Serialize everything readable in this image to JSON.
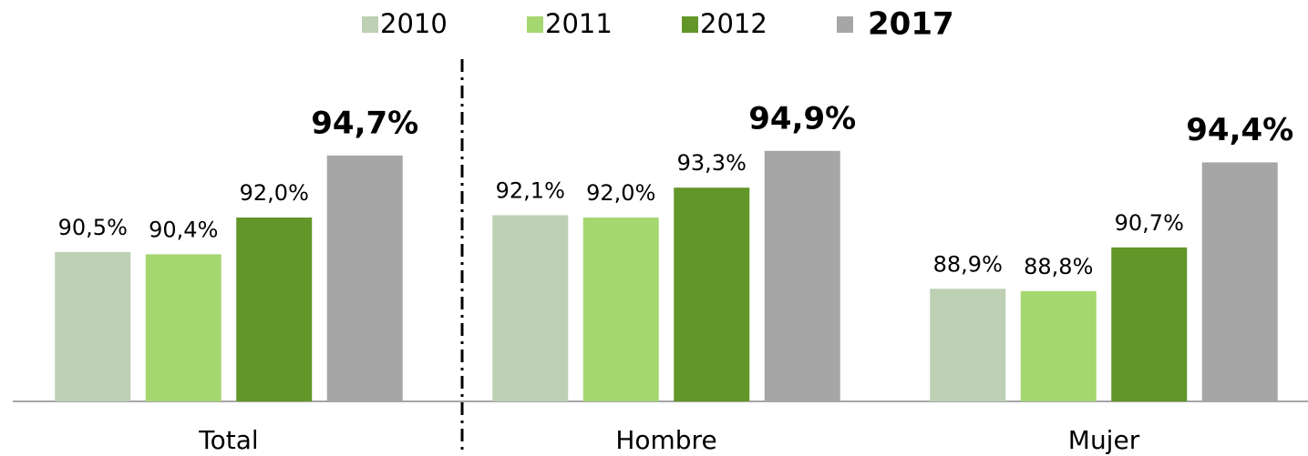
{
  "chart_data": {
    "type": "bar",
    "categories": [
      "Total",
      "Hombre",
      "Mujer"
    ],
    "series": [
      {
        "name": "2010",
        "color": "#bdd0b3",
        "values": [
          90.5,
          92.1,
          88.9
        ],
        "value_labels": [
          "90,5%",
          "92,1%",
          "88,9%"
        ]
      },
      {
        "name": "2011",
        "color": "#a5d770",
        "values": [
          90.4,
          92.0,
          88.8
        ],
        "value_labels": [
          "90,4%",
          "92,0%",
          "88,8%"
        ]
      },
      {
        "name": "2012",
        "color": "#629628",
        "values": [
          92.0,
          93.3,
          90.7
        ],
        "value_labels": [
          "92,0%",
          "93,3%",
          "90,7%"
        ]
      },
      {
        "name": "2017",
        "color": "#a6a6a6",
        "values": [
          94.7,
          94.9,
          94.4
        ],
        "value_labels": [
          "94,7%",
          "94,9%",
          "94,4%"
        ],
        "bold": true
      }
    ],
    "ylim": [
      84,
      100
    ],
    "legend": "top"
  }
}
